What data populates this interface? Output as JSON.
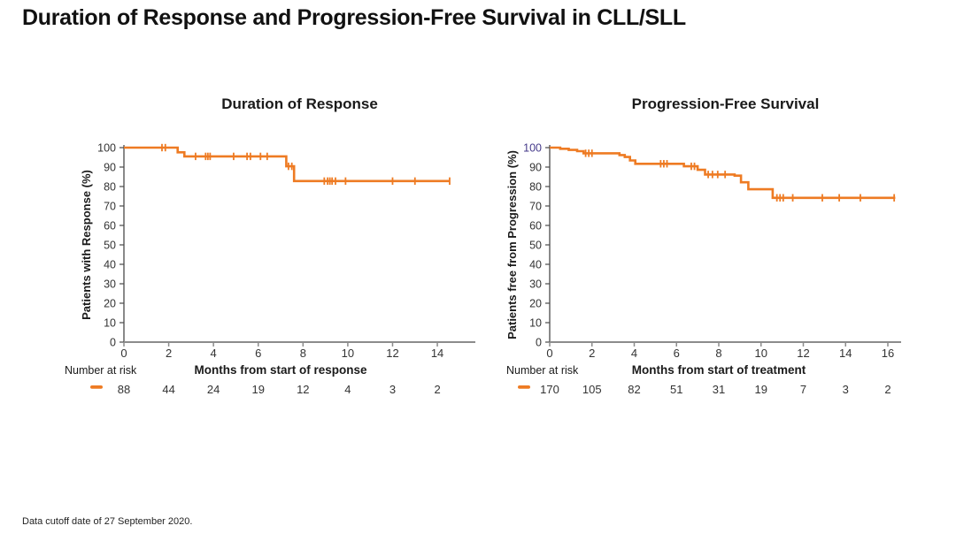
{
  "page": {
    "title": "Duration of Response and Progression-Free Survival in CLL/SLL",
    "footnote": "Data cutoff date of 27 September 2020."
  },
  "colors": {
    "curve_orange": "#EE7B23",
    "x_axis_gray": "#8C8C8C",
    "y_axis_dark": "#4A4A4A",
    "text_dark": "#1A1A1A",
    "tick_text": "#333333",
    "pfs_100_tick_purple": "#453A8A"
  },
  "chart_data": [
    {
      "type": "line",
      "subtype": "kaplan_meier_step",
      "title": "Duration of Response",
      "xlabel": "Months from start of response",
      "ylabel": "Patients with Response (%)",
      "xlim": [
        0,
        15.7
      ],
      "ylim": [
        0,
        100
      ],
      "xticks": [
        0,
        2,
        4,
        6,
        8,
        10,
        12,
        14
      ],
      "yticks": [
        0,
        10,
        20,
        30,
        40,
        50,
        60,
        70,
        80,
        90,
        100
      ],
      "grid": false,
      "legend": "none",
      "series": [
        {
          "name": "Duration of response",
          "color": "#EE7B23",
          "steps": [
            [
              0,
              100
            ],
            [
              2.4,
              100
            ],
            [
              2.4,
              97.6
            ],
            [
              2.7,
              97.6
            ],
            [
              2.7,
              95.5
            ],
            [
              7.25,
              95.5
            ],
            [
              7.25,
              90.4
            ],
            [
              7.6,
              90.4
            ],
            [
              7.6,
              82.8
            ],
            [
              14.55,
              82.8
            ]
          ],
          "censors": [
            [
              1.7,
              100
            ],
            [
              1.85,
              100
            ],
            [
              3.2,
              95.5
            ],
            [
              3.65,
              95.5
            ],
            [
              3.75,
              95.5
            ],
            [
              3.85,
              95.5
            ],
            [
              4.9,
              95.5
            ],
            [
              5.5,
              95.5
            ],
            [
              5.65,
              95.5
            ],
            [
              6.1,
              95.5
            ],
            [
              6.4,
              95.5
            ],
            [
              7.35,
              90.4
            ],
            [
              7.5,
              90.4
            ],
            [
              8.95,
              82.8
            ],
            [
              9.1,
              82.8
            ],
            [
              9.2,
              82.8
            ],
            [
              9.3,
              82.8
            ],
            [
              9.45,
              82.8
            ],
            [
              9.9,
              82.8
            ],
            [
              12.0,
              82.8
            ],
            [
              13.0,
              82.8
            ],
            [
              14.55,
              82.8
            ]
          ]
        }
      ],
      "number_at_risk": {
        "label": "Number at risk",
        "marker": "orange-dash",
        "times": [
          0,
          2,
          4,
          6,
          8,
          10,
          12,
          14
        ],
        "counts": [
          88,
          44,
          24,
          19,
          12,
          4,
          3,
          2
        ]
      }
    },
    {
      "type": "line",
      "subtype": "kaplan_meier_step",
      "title": "Progression-Free Survival",
      "xlabel": "Months from start of treatment",
      "ylabel": "Patients free from Progression (%)",
      "xlim": [
        0,
        16.6
      ],
      "ylim": [
        0,
        100
      ],
      "xticks": [
        0,
        2,
        4,
        6,
        8,
        10,
        12,
        14,
        16
      ],
      "yticks": [
        0,
        10,
        20,
        30,
        40,
        50,
        60,
        70,
        80,
        90,
        100
      ],
      "grid": false,
      "legend": "none",
      "highlight_tick": {
        "value": 100,
        "color": "#453A8A"
      },
      "series": [
        {
          "name": "Progression-free survival",
          "color": "#EE7B23",
          "steps": [
            [
              0,
              100
            ],
            [
              0.5,
              100
            ],
            [
              0.5,
              99.4
            ],
            [
              0.9,
              99.4
            ],
            [
              0.9,
              98.8
            ],
            [
              1.3,
              98.8
            ],
            [
              1.3,
              98.2
            ],
            [
              1.6,
              98.2
            ],
            [
              1.6,
              97.1
            ],
            [
              3.3,
              97.1
            ],
            [
              3.3,
              96.2
            ],
            [
              3.55,
              96.2
            ],
            [
              3.55,
              95.2
            ],
            [
              3.8,
              95.2
            ],
            [
              3.8,
              93.4
            ],
            [
              4.05,
              93.4
            ],
            [
              4.05,
              91.7
            ],
            [
              6.35,
              91.7
            ],
            [
              6.35,
              90.4
            ],
            [
              7.0,
              90.4
            ],
            [
              7.0,
              88.6
            ],
            [
              7.35,
              88.6
            ],
            [
              7.35,
              86.2
            ],
            [
              8.75,
              86.2
            ],
            [
              8.75,
              85.6
            ],
            [
              9.05,
              85.6
            ],
            [
              9.05,
              82.2
            ],
            [
              9.4,
              82.2
            ],
            [
              9.4,
              78.6
            ],
            [
              10.55,
              78.6
            ],
            [
              10.55,
              74.2
            ],
            [
              16.35,
              74.2
            ]
          ],
          "censors": [
            [
              1.7,
              97.1
            ],
            [
              1.85,
              97.1
            ],
            [
              2.0,
              97.1
            ],
            [
              5.25,
              91.7
            ],
            [
              5.4,
              91.7
            ],
            [
              5.55,
              91.7
            ],
            [
              6.7,
              90.4
            ],
            [
              6.85,
              90.4
            ],
            [
              7.5,
              86.2
            ],
            [
              7.7,
              86.2
            ],
            [
              7.95,
              86.2
            ],
            [
              8.3,
              86.2
            ],
            [
              10.75,
              74.2
            ],
            [
              10.9,
              74.2
            ],
            [
              11.05,
              74.2
            ],
            [
              11.5,
              74.2
            ],
            [
              12.9,
              74.2
            ],
            [
              13.7,
              74.2
            ],
            [
              14.7,
              74.2
            ],
            [
              16.3,
              74.2
            ]
          ]
        }
      ],
      "number_at_risk": {
        "label": "Number at risk",
        "marker": "orange-dash",
        "times": [
          0,
          2,
          4,
          6,
          8,
          10,
          12,
          14,
          16
        ],
        "counts": [
          170,
          105,
          82,
          51,
          31,
          19,
          7,
          3,
          2
        ]
      }
    }
  ]
}
